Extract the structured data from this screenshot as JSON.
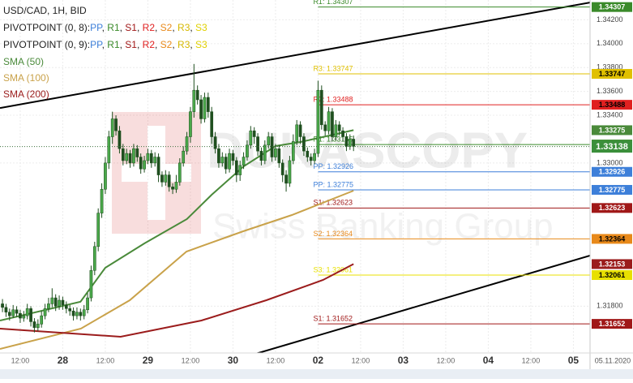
{
  "chart_data": {
    "type": "candlestick",
    "title": "USD/CAD, 1H, BID",
    "pivot_legends": [
      {
        "name": "PIVOTPOINT (0, 8):",
        "separator": ", ",
        "items": [
          {
            "text": "PP",
            "color": "#3d7fd9"
          },
          {
            "text": "R1",
            "color": "#3a8a2a"
          },
          {
            "text": "S1",
            "color": "#a01818"
          },
          {
            "text": "R2",
            "color": "#e02020"
          },
          {
            "text": "S2",
            "color": "#e8891a"
          },
          {
            "text": "R3",
            "color": "#d6b800"
          },
          {
            "text": "S3",
            "color": "#e0d000"
          }
        ]
      },
      {
        "name": "PIVOTPOINT (0, 9):",
        "separator": ", ",
        "items": [
          {
            "text": "PP",
            "color": "#3d7fd9"
          },
          {
            "text": "R1",
            "color": "#3a8a2a"
          },
          {
            "text": "S1",
            "color": "#a01818"
          },
          {
            "text": "R2",
            "color": "#e02020"
          },
          {
            "text": "S2",
            "color": "#e8891a"
          },
          {
            "text": "R3",
            "color": "#d6b800"
          },
          {
            "text": "S3",
            "color": "#e0d000"
          }
        ]
      }
    ],
    "watermark": {
      "brand": "DUKASCOPY",
      "tagline": "Swiss Banking Group"
    },
    "date_label": "05.11.2020",
    "xlim": [
      6.3,
      172.7
    ],
    "ylim": [
      1.31408,
      1.34366
    ],
    "xticks": [
      {
        "value": 12,
        "label": "12:00"
      },
      {
        "value": 24,
        "label": "28"
      },
      {
        "value": 36,
        "label": "12:00"
      },
      {
        "value": 48,
        "label": "29"
      },
      {
        "value": 60,
        "label": "12:00"
      },
      {
        "value": 72,
        "label": "30"
      },
      {
        "value": 84,
        "label": "12:00"
      },
      {
        "value": 96,
        "label": "02"
      },
      {
        "value": 108,
        "label": "12:00"
      },
      {
        "value": 120,
        "label": "03"
      },
      {
        "value": 132,
        "label": "12:00"
      },
      {
        "value": 144,
        "label": "04"
      },
      {
        "value": 156,
        "label": "12:00"
      },
      {
        "value": 168,
        "label": "05"
      }
    ],
    "yticks": [
      {
        "value": 1.342,
        "label": "1.34200"
      },
      {
        "value": 1.34,
        "label": "1.34000"
      },
      {
        "value": 1.338,
        "label": "1.33800"
      },
      {
        "value": 1.336,
        "label": "1.33600"
      },
      {
        "value": 1.334,
        "label": "1.33400"
      },
      {
        "value": 1.33,
        "label": "1.33000"
      },
      {
        "value": 1.318,
        "label": "1.31800"
      }
    ],
    "grid": true,
    "up_color": "#4aa84a",
    "down_color": "#1f4f1f",
    "candles": {
      "x": [
        7,
        8,
        9,
        10,
        11,
        12,
        13,
        14,
        15,
        16,
        17,
        18,
        19,
        20,
        21,
        22,
        23,
        24,
        25,
        26,
        27,
        28,
        29,
        30,
        31,
        32,
        33,
        34,
        35,
        36,
        37,
        38,
        39,
        40,
        41,
        42,
        43,
        44,
        45,
        46,
        47,
        48,
        49,
        50,
        51,
        52,
        53,
        54,
        55,
        56,
        57,
        58,
        59,
        60,
        61,
        62,
        63,
        64,
        65,
        66,
        67,
        68,
        69,
        70,
        71,
        72,
        73,
        74,
        75,
        76,
        77,
        78,
        79,
        80,
        81,
        82,
        83,
        84,
        85,
        86,
        87,
        88,
        89,
        90,
        91,
        92,
        93,
        94,
        95,
        96,
        97,
        98,
        99,
        100,
        101,
        102,
        103,
        104,
        105,
        106
      ],
      "ohlc": [
        [
          1.3182,
          1.3186,
          1.3175,
          1.3179
        ],
        [
          1.3179,
          1.3182,
          1.3171,
          1.3175
        ],
        [
          1.3175,
          1.3178,
          1.3168,
          1.3172
        ],
        [
          1.3172,
          1.3181,
          1.317,
          1.3177
        ],
        [
          1.3177,
          1.318,
          1.3171,
          1.3174
        ],
        [
          1.3174,
          1.3177,
          1.3166,
          1.317
        ],
        [
          1.317,
          1.3176,
          1.3167,
          1.3172
        ],
        [
          1.3172,
          1.3182,
          1.3169,
          1.3178
        ],
        [
          1.3178,
          1.318,
          1.3163,
          1.3167
        ],
        [
          1.3167,
          1.317,
          1.3158,
          1.3162
        ],
        [
          1.3162,
          1.3169,
          1.3159,
          1.3165
        ],
        [
          1.3165,
          1.3176,
          1.3162,
          1.3172
        ],
        [
          1.3172,
          1.3182,
          1.3169,
          1.3178
        ],
        [
          1.3178,
          1.3187,
          1.3175,
          1.3182
        ],
        [
          1.3182,
          1.3195,
          1.3179,
          1.3187
        ],
        [
          1.3187,
          1.319,
          1.3176,
          1.318
        ],
        [
          1.318,
          1.3189,
          1.3177,
          1.3185
        ],
        [
          1.3185,
          1.3188,
          1.3177,
          1.3181
        ],
        [
          1.3181,
          1.3184,
          1.3174,
          1.3178
        ],
        [
          1.3178,
          1.3181,
          1.3172,
          1.3176
        ],
        [
          1.3176,
          1.3179,
          1.3168,
          1.3172
        ],
        [
          1.3172,
          1.3179,
          1.3169,
          1.3175
        ],
        [
          1.3175,
          1.3178,
          1.3168,
          1.3172
        ],
        [
          1.3172,
          1.3181,
          1.3169,
          1.3177
        ],
        [
          1.3177,
          1.3191,
          1.3174,
          1.3187
        ],
        [
          1.3187,
          1.3214,
          1.3184,
          1.321
        ],
        [
          1.321,
          1.3234,
          1.3206,
          1.323
        ],
        [
          1.323,
          1.3262,
          1.3226,
          1.3258
        ],
        [
          1.3258,
          1.3283,
          1.3254,
          1.3278
        ],
        [
          1.3278,
          1.3305,
          1.3274,
          1.33
        ],
        [
          1.33,
          1.3327,
          1.3295,
          1.3322
        ],
        [
          1.3322,
          1.3343,
          1.3316,
          1.3337
        ],
        [
          1.3337,
          1.334,
          1.3323,
          1.3327
        ],
        [
          1.3327,
          1.3331,
          1.3308,
          1.3312
        ],
        [
          1.3312,
          1.3316,
          1.3298,
          1.3302
        ],
        [
          1.3302,
          1.3312,
          1.3299,
          1.3308
        ],
        [
          1.3308,
          1.3311,
          1.3296,
          1.33
        ],
        [
          1.33,
          1.3316,
          1.3297,
          1.3312
        ],
        [
          1.3312,
          1.3315,
          1.3301,
          1.3305
        ],
        [
          1.3305,
          1.3308,
          1.3291,
          1.3295
        ],
        [
          1.3295,
          1.3306,
          1.3292,
          1.3302
        ],
        [
          1.3302,
          1.3312,
          1.3299,
          1.3308
        ],
        [
          1.3308,
          1.3311,
          1.3296,
          1.33
        ],
        [
          1.33,
          1.3309,
          1.3297,
          1.3305
        ],
        [
          1.3305,
          1.3308,
          1.3284,
          1.329
        ],
        [
          1.329,
          1.3293,
          1.328,
          1.3284
        ],
        [
          1.3284,
          1.3294,
          1.3281,
          1.329
        ],
        [
          1.329,
          1.3293,
          1.3276,
          1.328
        ],
        [
          1.328,
          1.3283,
          1.3274,
          1.3278
        ],
        [
          1.3278,
          1.329,
          1.3275,
          1.3284
        ],
        [
          1.3284,
          1.3304,
          1.3281,
          1.33
        ],
        [
          1.33,
          1.3314,
          1.3297,
          1.331
        ],
        [
          1.331,
          1.3326,
          1.3307,
          1.3322
        ],
        [
          1.3322,
          1.3347,
          1.3317,
          1.3343
        ],
        [
          1.3343,
          1.3383,
          1.3338,
          1.3361
        ],
        [
          1.3361,
          1.3365,
          1.3349,
          1.3353
        ],
        [
          1.3353,
          1.3357,
          1.3333,
          1.3337
        ],
        [
          1.3337,
          1.3359,
          1.3334,
          1.3355
        ],
        [
          1.3355,
          1.3359,
          1.3338,
          1.3343
        ],
        [
          1.3343,
          1.3347,
          1.3316,
          1.3322
        ],
        [
          1.3322,
          1.3326,
          1.3308,
          1.3312
        ],
        [
          1.3312,
          1.3316,
          1.3296,
          1.33
        ],
        [
          1.33,
          1.3309,
          1.3297,
          1.3305
        ],
        [
          1.3305,
          1.3308,
          1.3291,
          1.3295
        ],
        [
          1.3295,
          1.3312,
          1.3292,
          1.3308
        ],
        [
          1.3308,
          1.3311,
          1.3298,
          1.3302
        ],
        [
          1.3302,
          1.3305,
          1.3284,
          1.329
        ],
        [
          1.329,
          1.3302,
          1.3285,
          1.3298
        ],
        [
          1.3298,
          1.3309,
          1.3295,
          1.3305
        ],
        [
          1.3305,
          1.3319,
          1.3302,
          1.3315
        ],
        [
          1.3315,
          1.3331,
          1.3312,
          1.3327
        ],
        [
          1.3327,
          1.333,
          1.3316,
          1.3322
        ],
        [
          1.3322,
          1.3325,
          1.3306,
          1.331
        ],
        [
          1.331,
          1.3313,
          1.3298,
          1.3302
        ],
        [
          1.3302,
          1.3319,
          1.3299,
          1.3315
        ],
        [
          1.3315,
          1.3326,
          1.3312,
          1.3322
        ],
        [
          1.3322,
          1.3325,
          1.3301,
          1.3305
        ],
        [
          1.3305,
          1.3316,
          1.3302,
          1.3312
        ],
        [
          1.3312,
          1.3315,
          1.3296,
          1.33
        ],
        [
          1.33,
          1.3303,
          1.3284,
          1.329
        ],
        [
          1.329,
          1.3294,
          1.3276,
          1.3283
        ],
        [
          1.3283,
          1.3306,
          1.328,
          1.3302
        ],
        [
          1.3302,
          1.3324,
          1.3299,
          1.3318
        ],
        [
          1.3318,
          1.3336,
          1.3315,
          1.3332
        ],
        [
          1.3332,
          1.3335,
          1.3316,
          1.3322
        ],
        [
          1.3322,
          1.3325,
          1.3306,
          1.331
        ],
        [
          1.331,
          1.3313,
          1.3301,
          1.3305
        ],
        [
          1.3305,
          1.3308,
          1.3298,
          1.3302
        ],
        [
          1.3302,
          1.3312,
          1.3299,
          1.3308
        ],
        [
          1.3308,
          1.3369,
          1.3305,
          1.3361
        ],
        [
          1.3361,
          1.3365,
          1.3328,
          1.3332
        ],
        [
          1.3332,
          1.3335,
          1.3323,
          1.3327
        ],
        [
          1.3327,
          1.3347,
          1.3324,
          1.3343
        ],
        [
          1.3343,
          1.3346,
          1.3318,
          1.3322
        ],
        [
          1.3322,
          1.3336,
          1.3319,
          1.3332
        ],
        [
          1.3332,
          1.3335,
          1.3323,
          1.3327
        ],
        [
          1.3327,
          1.333,
          1.3318,
          1.3322
        ],
        [
          1.3322,
          1.3325,
          1.331,
          1.3314
        ],
        [
          1.3314,
          1.3324,
          1.3311,
          1.332
        ],
        [
          1.332,
          1.3323,
          1.331,
          1.3314
        ]
      ]
    },
    "series": [
      {
        "name": "SMA (50)",
        "color": "#4a8a3a",
        "x": [
          6.3,
          29,
          36,
          47,
          59,
          66,
          75,
          84,
          91,
          106
        ],
        "values": [
          1.3168,
          1.31837,
          1.32122,
          1.32326,
          1.3253,
          1.32734,
          1.32972,
          1.33142,
          1.33176,
          1.33275
        ]
      },
      {
        "name": "SMA (100)",
        "color": "#c9a24a",
        "x": [
          6.3,
          29.1,
          42.9,
          58.9,
          74.9,
          88.6,
          106
        ],
        "values": [
          1.31442,
          1.31612,
          1.3185,
          1.32258,
          1.32428,
          1.32564,
          1.32768
        ]
      },
      {
        "name": "SMA (200)",
        "color": "#9b1c1c",
        "x": [
          6.3,
          40.3,
          63.1,
          81.4,
          97.4,
          106
        ],
        "values": [
          1.31612,
          1.31544,
          1.3168,
          1.3185,
          1.3202,
          1.32153
        ]
      }
    ],
    "trendlines": [
      {
        "x": [
          6.3,
          172.7
        ],
        "values": [
          1.33461,
          1.34345
        ]
      },
      {
        "x": [
          54.3,
          172.7
        ],
        "values": [
          1.31191,
          1.32224
        ]
      }
    ],
    "pivot_start": 96,
    "levels": [
      {
        "label": "R1: 1.34307",
        "value": 1.34307,
        "color": "#3a8a2a"
      },
      {
        "label": "R3: 1.33747",
        "value": 1.33747,
        "color": "#e0c000"
      },
      {
        "label": "R2: 1.33488",
        "value": 1.33488,
        "color": "#e02020"
      },
      {
        "label": "R1: 1.33155",
        "value": 1.33155,
        "color": "#3a8a2a"
      },
      {
        "label": "PP: 1.32926",
        "value": 1.32926,
        "color": "#3d7fd9"
      },
      {
        "label": "PP: 1.32775",
        "value": 1.32775,
        "color": "#3d7fd9"
      },
      {
        "label": "S1: 1.32623",
        "value": 1.32623,
        "color": "#a01818"
      },
      {
        "label": "S2: 1.32364",
        "value": 1.32364,
        "color": "#e8891a"
      },
      {
        "label": "S3: 1.32061",
        "value": 1.32061,
        "color": "#e8e000"
      },
      {
        "label": "S1: 1.31652",
        "value": 1.31652,
        "color": "#a01818"
      }
    ],
    "last_price": 1.33138,
    "last_price_color": "#3b8f3b"
  }
}
